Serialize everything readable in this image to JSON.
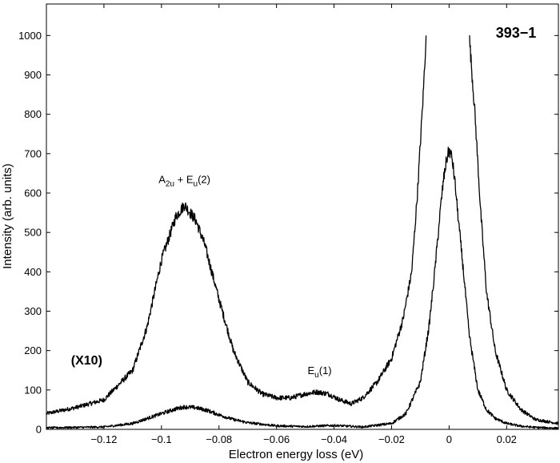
{
  "chart_data": {
    "type": "line",
    "title": "393−1",
    "xlabel": "Electron energy loss (eV)",
    "ylabel": "Intensity (arb. units)",
    "xlim": [
      -0.14,
      0.038
    ],
    "ylim": [
      0,
      1080
    ],
    "x_ticks": [
      -0.12,
      -0.1,
      -0.08,
      -0.06,
      -0.04,
      -0.02,
      0,
      0.02
    ],
    "x_tick_labels": [
      "−0.12",
      "−0.1",
      "−0.08",
      "−0.06",
      "−0.04",
      "−0.02",
      "0",
      "0.02"
    ],
    "y_ticks": [
      0,
      100,
      200,
      300,
      400,
      500,
      600,
      700,
      800,
      900,
      1000
    ],
    "y_tick_labels": [
      "0",
      "100",
      "200",
      "300",
      "400",
      "500",
      "600",
      "700",
      "800",
      "900",
      "1000"
    ],
    "grid": false,
    "series": [
      {
        "x": [
          -0.14,
          -0.13,
          -0.12,
          -0.11,
          -0.105,
          -0.1,
          -0.095,
          -0.092,
          -0.088,
          -0.085,
          -0.08,
          -0.075,
          -0.07,
          -0.065,
          -0.06,
          -0.055,
          -0.05,
          -0.046,
          -0.042,
          -0.038,
          -0.034,
          -0.03,
          -0.025,
          -0.02,
          -0.016,
          -0.013,
          -0.011,
          -0.009,
          -0.008
        ],
        "y": [
          40,
          55,
          75,
          150,
          260,
          430,
          540,
          570,
          530,
          470,
          330,
          200,
          120,
          90,
          80,
          80,
          90,
          95,
          90,
          75,
          65,
          80,
          120,
          180,
          280,
          400,
          600,
          850,
          1000
        ]
      },
      {
        "x": [
          0.007,
          0.009,
          0.011,
          0.013,
          0.016,
          0.02,
          0.025,
          0.03,
          0.038
        ],
        "y": [
          1000,
          800,
          550,
          350,
          200,
          100,
          50,
          25,
          15
        ]
      },
      {
        "x": [
          -0.14,
          -0.12,
          -0.11,
          -0.1,
          -0.095,
          -0.092,
          -0.088,
          -0.084,
          -0.08,
          -0.075,
          -0.07,
          -0.06,
          -0.05,
          -0.04,
          -0.03,
          -0.02,
          -0.015,
          -0.01,
          -0.007,
          -0.005,
          -0.003,
          -0.002,
          -0.001,
          0,
          0.001,
          0.002,
          0.003,
          0.005,
          0.007,
          0.01,
          0.013,
          0.016,
          0.02,
          0.025,
          0.03,
          0.038
        ],
        "y": [
          4,
          6,
          15,
          40,
          52,
          57,
          55,
          48,
          37,
          25,
          17,
          9,
          7,
          10,
          6,
          15,
          40,
          120,
          260,
          400,
          560,
          630,
          680,
          710,
          690,
          630,
          550,
          400,
          240,
          100,
          50,
          28,
          15,
          8,
          5,
          3
        ]
      }
    ],
    "annotations": [
      {
        "text_parts": [
          "A",
          "2u",
          " + E",
          "u",
          "(2)"
        ],
        "x": -0.092,
        "y": 625
      },
      {
        "text_parts": [
          "E",
          "u",
          "(1)"
        ],
        "x": -0.045,
        "y": 140
      },
      {
        "text_parts": [
          "(X10)"
        ],
        "x": -0.126,
        "y": 165
      }
    ]
  }
}
